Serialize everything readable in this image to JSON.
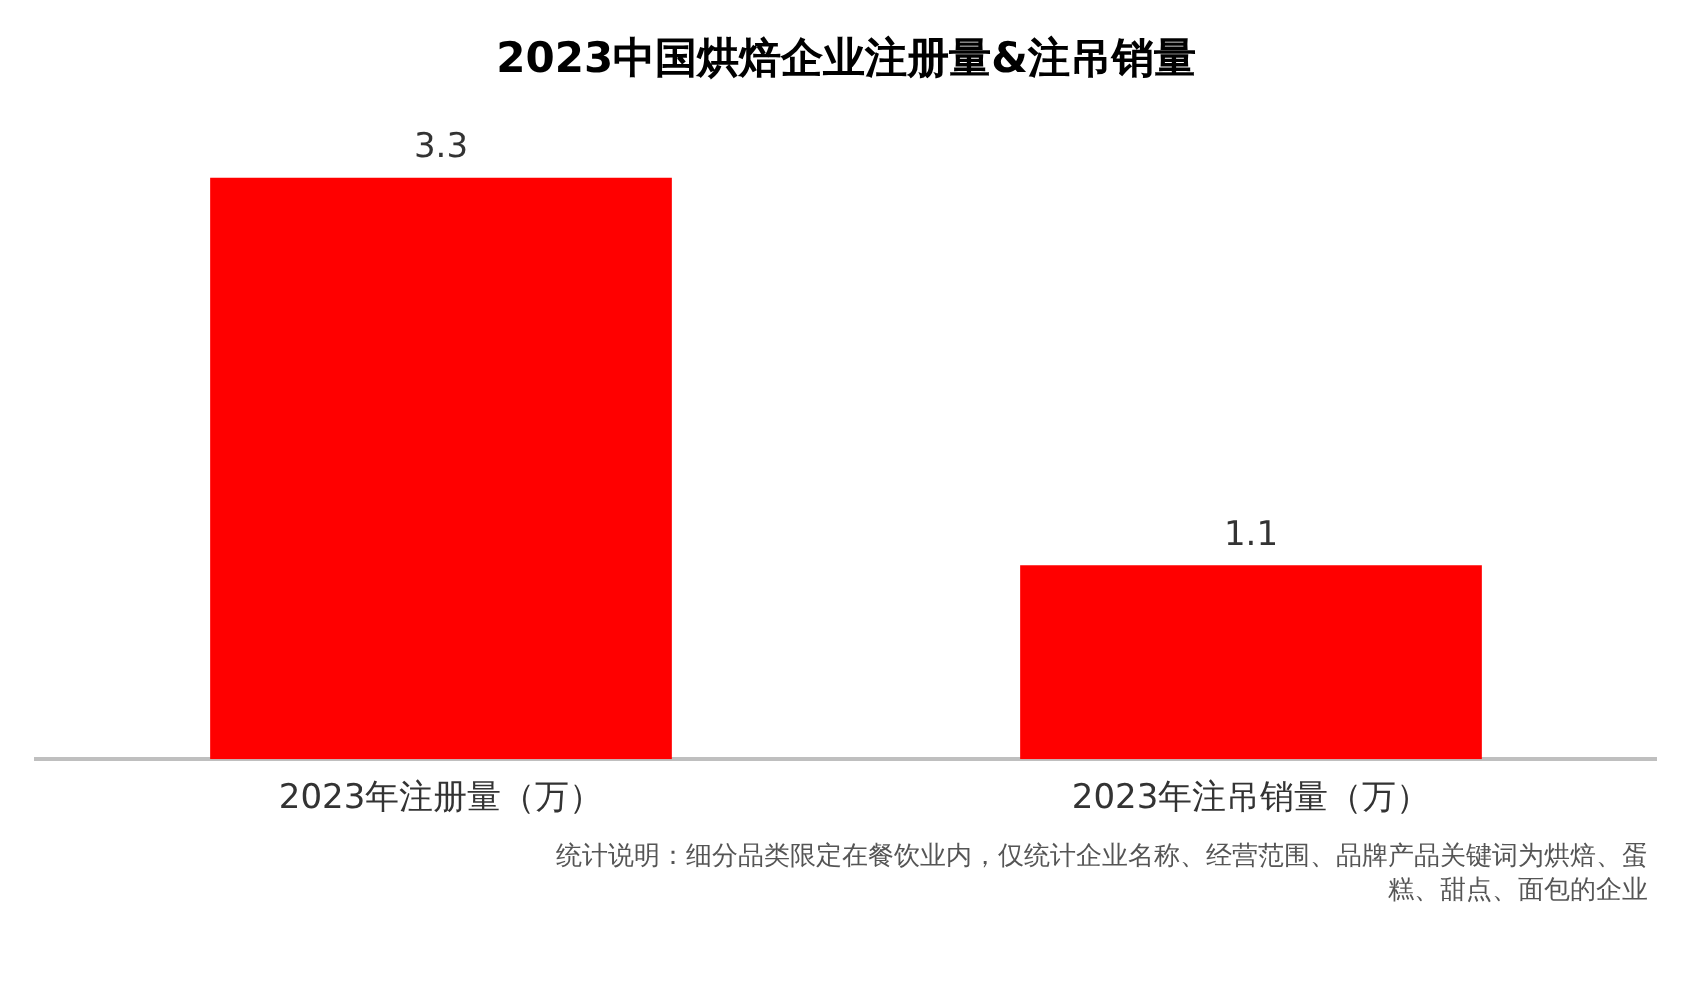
{
  "chart_data": {
    "type": "bar",
    "title": "2023中国烘焙企业注册量&注吊销量",
    "categories": [
      "2023年注册量（万）",
      "2023年注吊销量（万）"
    ],
    "values": [
      3.3,
      1.1
    ],
    "color": "#ff0000",
    "data_labels": true,
    "grid": false,
    "legend": false,
    "annotations": [
      "统计说明：细分品类限定在餐饮业内，仅统计企业名称、经营范围、品牌产品关键词为烘焙、蛋糕、甜点、面包的企业"
    ]
  }
}
